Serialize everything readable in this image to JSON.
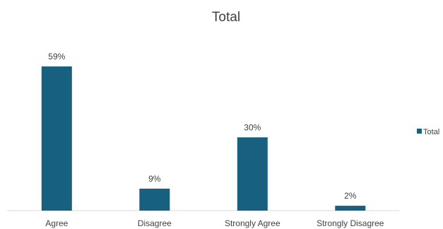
{
  "chart_data": {
    "type": "bar",
    "title": "Total",
    "categories": [
      "Agree",
      "Disagree",
      "Strongly Agree",
      "Strongly Disagree"
    ],
    "series": [
      {
        "name": "Total",
        "values": [
          59,
          9,
          30,
          2
        ],
        "color": "#17607f"
      }
    ],
    "data_labels": [
      "59%",
      "9%",
      "30%",
      "2%"
    ],
    "value_unit": "%",
    "ylim": [
      0,
      59
    ],
    "grid": false,
    "legend": {
      "position": "right",
      "entries": [
        "Total"
      ]
    },
    "xlabel": "",
    "ylabel": ""
  }
}
